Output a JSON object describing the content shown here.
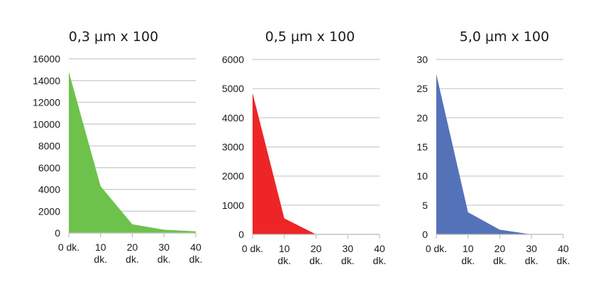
{
  "chart_data": [
    {
      "type": "area",
      "title": "0,3 µm x 100",
      "x": [
        0,
        10,
        20,
        30,
        40
      ],
      "x_tick_labels": [
        [
          "0 dk."
        ],
        [
          "10",
          "dk."
        ],
        [
          "20",
          "dk."
        ],
        [
          "30",
          "dk."
        ],
        [
          "40",
          "dk."
        ]
      ],
      "y_ticks": [
        "0",
        "2000",
        "4000",
        "6000",
        "8000",
        "10000",
        "12000",
        "14000",
        "16000"
      ],
      "ylim": [
        0,
        16000
      ],
      "grid": true,
      "series": [
        {
          "values": [
            14800,
            4300,
            800,
            300,
            150
          ],
          "color": "#6cc24a"
        }
      ]
    },
    {
      "type": "area",
      "title": "0,5 µm x 100",
      "x": [
        0,
        10,
        20,
        30,
        40
      ],
      "x_tick_labels": [
        [
          "0 dk."
        ],
        [
          "10",
          "dk."
        ],
        [
          "20",
          "dk."
        ],
        [
          "30",
          "dk."
        ],
        [
          "40",
          "dk."
        ]
      ],
      "y_ticks": [
        "0",
        "1000",
        "2000",
        "3000",
        "4000",
        "5000",
        "6000"
      ],
      "ylim": [
        0,
        6000
      ],
      "grid": true,
      "series": [
        {
          "values": [
            4850,
            550,
            0,
            0,
            0
          ],
          "color": "#ee2527"
        }
      ]
    },
    {
      "type": "area",
      "title": "5,0 µm x 100",
      "x": [
        0,
        10,
        20,
        30,
        40
      ],
      "x_tick_labels": [
        [
          "0 dk."
        ],
        [
          "10",
          "dk."
        ],
        [
          "20",
          "dk."
        ],
        [
          "30",
          "dk."
        ],
        [
          "40",
          "dk."
        ]
      ],
      "y_ticks": [
        "0",
        "5",
        "10",
        "15",
        "20",
        "25",
        "30"
      ],
      "ylim": [
        0,
        30
      ],
      "grid": true,
      "series": [
        {
          "values": [
            27.5,
            3.8,
            0.8,
            0,
            0
          ],
          "color": "#5472b8"
        }
      ]
    }
  ]
}
